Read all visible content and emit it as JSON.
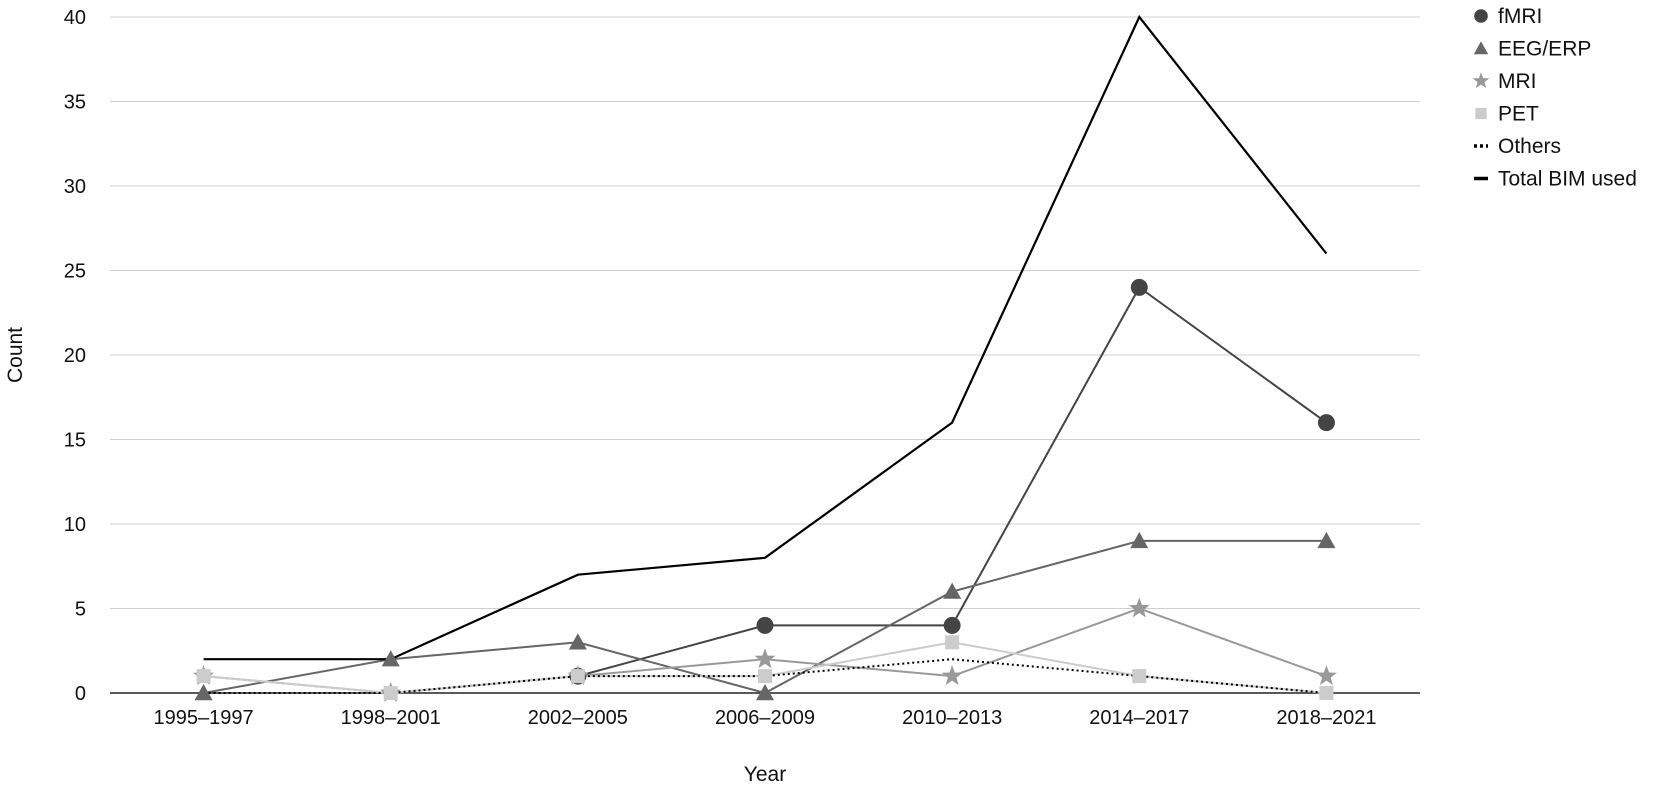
{
  "chart_data": {
    "type": "line",
    "title": "",
    "xlabel": "Year",
    "ylabel": "Count",
    "ylim": [
      0,
      40
    ],
    "yticks": [
      0,
      5,
      10,
      15,
      20,
      25,
      30,
      35,
      40
    ],
    "grid": true,
    "legend_position": "top-right",
    "categories": [
      "1995–1997",
      "1998–2001",
      "2002–2005",
      "2006–2009",
      "2010–2013",
      "2014–2017",
      "2018–2021"
    ],
    "series": [
      {
        "name": "fMRI",
        "marker": "circle",
        "color": "#444444",
        "line_style": "solid",
        "values": [
          null,
          null,
          1,
          4,
          4,
          24,
          16
        ]
      },
      {
        "name": "EEG/ERP",
        "marker": "triangle",
        "color": "#666666",
        "line_style": "solid",
        "values": [
          0,
          2,
          3,
          0,
          6,
          9,
          9
        ]
      },
      {
        "name": "MRI",
        "marker": "star",
        "color": "#999999",
        "line_style": "solid",
        "values": [
          1,
          0,
          1,
          2,
          1,
          5,
          1
        ]
      },
      {
        "name": "PET",
        "marker": "square",
        "color": "#cccccc",
        "line_style": "solid",
        "values": [
          1,
          0,
          1,
          1,
          3,
          1,
          0
        ]
      },
      {
        "name": "Others",
        "marker": "none",
        "color": "#000000",
        "line_style": "dotted",
        "values": [
          0,
          0,
          1,
          1,
          2,
          1,
          0
        ]
      },
      {
        "name": "Total BIM used",
        "marker": "none",
        "color": "#000000",
        "line_style": "solid",
        "values": [
          2,
          2,
          7,
          8,
          16,
          40,
          26
        ]
      }
    ]
  }
}
